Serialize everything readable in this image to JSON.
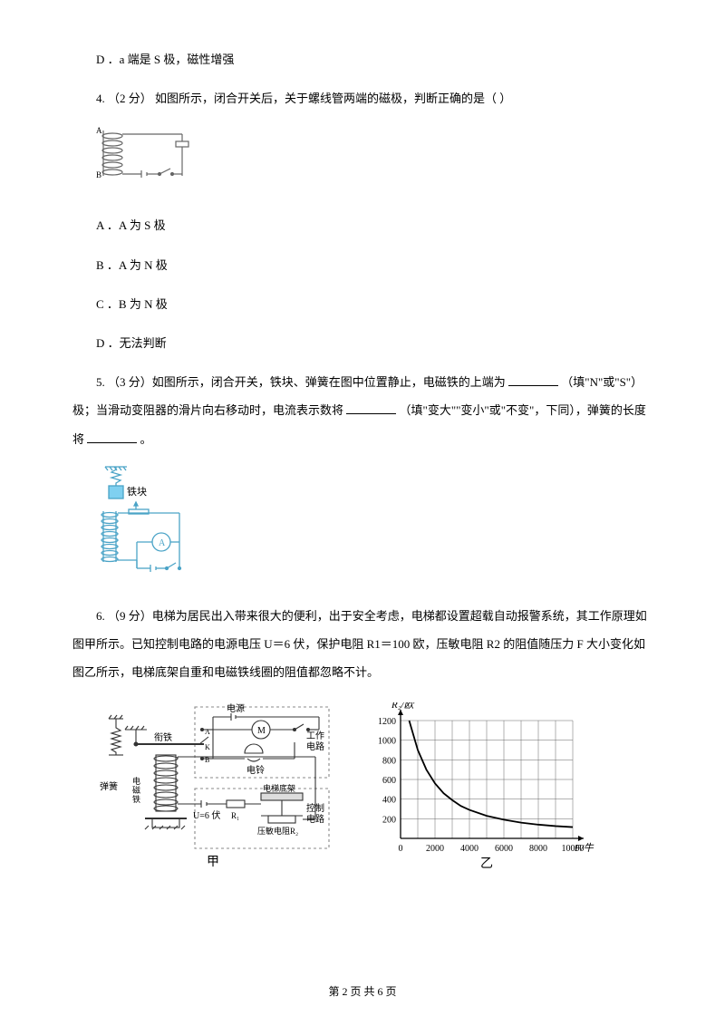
{
  "q3": {
    "optD": "D ．a 端是 S 极，磁性增强"
  },
  "q4": {
    "stem": "4.  （2 分）  如图所示，闭合开关后，关于螺线管两端的磁极，判断正确的是（      ）",
    "optA": "A ．A 为 S 极",
    "optB": "B ．A 为 N 极",
    "optC": "C ．B 为 N 极",
    "optD": "D ．无法判断",
    "figure": {
      "labelA": "A",
      "labelB": "B",
      "coil_stroke": "#666666",
      "circuit_stroke": "#666666"
    }
  },
  "q5": {
    "stem_before_blank1": "5.  （3 分）如图所示，闭合开关，铁块、弹簧在图中位置静止，电磁铁的上端为",
    "stem_after_blank1": "（填\"N\"或\"S\"）极；当滑动变阻器的滑片向右移动时，电流表示数将",
    "stem_after_blank2": "（填\"变大\"\"变小\"或\"不变\"，下同），弹簧的长度将",
    "stem_end": "。",
    "figure": {
      "iron_label": "铁块",
      "meter_label": "A",
      "stroke": "#4aa3c7",
      "spring_fill": "#7fd0f0"
    }
  },
  "q6": {
    "stem": "6.   （9 分）电梯为居民出入带来很大的便利，出于安全考虑，电梯都设置超载自动报警系统，其工作原理如图甲所示。已知控制电路的电源电压 U＝6 伏，保护电阻 R1＝100 欧，压敏电阻 R2 的阻值随压力 F 大小变化如图乙所示，电梯底架自重和电磁铁线圈的阻值都忽略不计。",
    "figure_jia": {
      "label": "甲",
      "labels": {
        "dianyuan": "电源",
        "gongzuo": "工作电路",
        "kongzhi": "控制电路",
        "xianitie": "衔铁",
        "dianling": "电铃",
        "tanhuang": "弹簧",
        "dianci": "电磁铁",
        "volt": "U=6 伏",
        "dizhuo": "电梯底架",
        "yamin": "压敏电阻R₂",
        "R1": "R₁"
      },
      "stroke": "#333333",
      "dash_color": "#888888"
    },
    "figure_yi": {
      "label": "乙",
      "y_axis_label": "R₂/欧",
      "x_axis_label": "F/牛",
      "y_ticks": [
        "200",
        "400",
        "600",
        "800",
        "1000",
        "1200"
      ],
      "x_ticks": [
        "0",
        "2000",
        "4000",
        "6000",
        "8000",
        "10000"
      ],
      "curve_points": [
        [
          500,
          1200
        ],
        [
          1000,
          900
        ],
        [
          1500,
          700
        ],
        [
          2000,
          560
        ],
        [
          2500,
          460
        ],
        [
          3000,
          390
        ],
        [
          3500,
          330
        ],
        [
          4000,
          290
        ],
        [
          5000,
          230
        ],
        [
          6000,
          190
        ],
        [
          7000,
          160
        ],
        [
          8000,
          140
        ],
        [
          9000,
          125
        ],
        [
          10000,
          115
        ]
      ],
      "grid_color": "#666666",
      "axis_color": "#000000",
      "curve_color": "#000000"
    }
  },
  "footer": "第 2 页 共 6 页"
}
